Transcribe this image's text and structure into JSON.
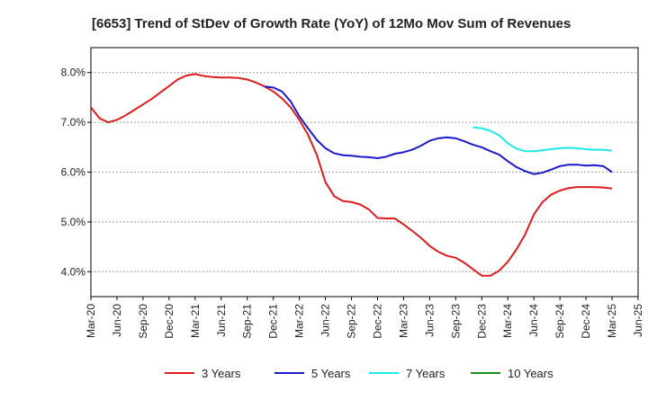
{
  "chart_data": {
    "type": "line",
    "title": "[6653]  Trend of StDev of Growth Rate (YoY) of 12Mo Mov Sum of Revenues",
    "xlabel": "",
    "ylabel": "",
    "ylim": [
      3.5,
      8.5
    ],
    "grid": true,
    "y_ticks": [
      {
        "value": 4.0,
        "label": "4.0%"
      },
      {
        "value": 5.0,
        "label": "5.0%"
      },
      {
        "value": 6.0,
        "label": "6.0%"
      },
      {
        "value": 7.0,
        "label": "7.0%"
      },
      {
        "value": 8.0,
        "label": "8.0%"
      }
    ],
    "x_range": [
      0,
      63
    ],
    "x_ticks": [
      {
        "index": 0,
        "label": "Mar-20"
      },
      {
        "index": 3,
        "label": "Jun-20"
      },
      {
        "index": 6,
        "label": "Sep-20"
      },
      {
        "index": 9,
        "label": "Dec-20"
      },
      {
        "index": 12,
        "label": "Mar-21"
      },
      {
        "index": 15,
        "label": "Jun-21"
      },
      {
        "index": 18,
        "label": "Sep-21"
      },
      {
        "index": 21,
        "label": "Dec-21"
      },
      {
        "index": 24,
        "label": "Mar-22"
      },
      {
        "index": 27,
        "label": "Jun-22"
      },
      {
        "index": 30,
        "label": "Sep-22"
      },
      {
        "index": 33,
        "label": "Dec-22"
      },
      {
        "index": 36,
        "label": "Mar-23"
      },
      {
        "index": 39,
        "label": "Jun-23"
      },
      {
        "index": 42,
        "label": "Sep-23"
      },
      {
        "index": 45,
        "label": "Dec-23"
      },
      {
        "index": 48,
        "label": "Mar-24"
      },
      {
        "index": 51,
        "label": "Jun-24"
      },
      {
        "index": 54,
        "label": "Sep-24"
      },
      {
        "index": 57,
        "label": "Dec-24"
      },
      {
        "index": 60,
        "label": "Mar-25"
      },
      {
        "index": 63,
        "label": "Jun-25"
      }
    ],
    "series": [
      {
        "name": "3 Years",
        "color": "#dd1c1c",
        "start_index": 0,
        "values": [
          7.3,
          7.08,
          7.0,
          7.05,
          7.14,
          7.25,
          7.36,
          7.47,
          7.6,
          7.73,
          7.86,
          7.94,
          7.97,
          7.93,
          7.91,
          7.9,
          7.9,
          7.89,
          7.86,
          7.8,
          7.72,
          7.62,
          7.48,
          7.3,
          7.05,
          6.75,
          6.35,
          5.8,
          5.52,
          5.42,
          5.4,
          5.35,
          5.25,
          5.08,
          5.07,
          5.07,
          4.95,
          4.82,
          4.68,
          4.52,
          4.4,
          4.32,
          4.28,
          4.18,
          4.05,
          3.92,
          3.92,
          4.02,
          4.2,
          4.45,
          4.75,
          5.15,
          5.4,
          5.55,
          5.63,
          5.68,
          5.7,
          5.7,
          5.7,
          5.69,
          5.67
        ]
      },
      {
        "name": "5 Years",
        "color": "#1a1acc",
        "start_index": 20,
        "values": [
          7.72,
          7.7,
          7.62,
          7.42,
          7.12,
          6.88,
          6.65,
          6.48,
          6.38,
          6.34,
          6.33,
          6.31,
          6.3,
          6.28,
          6.31,
          6.37,
          6.4,
          6.45,
          6.53,
          6.63,
          6.68,
          6.7,
          6.68,
          6.62,
          6.55,
          6.5,
          6.42,
          6.35,
          6.22,
          6.1,
          6.02,
          5.96,
          5.99,
          6.05,
          6.12,
          6.15,
          6.15,
          6.13,
          6.14,
          6.12,
          6.0
        ]
      },
      {
        "name": "7 Years",
        "color": "#1ee8ec",
        "start_index": 44,
        "values": [
          6.9,
          6.88,
          6.83,
          6.74,
          6.58,
          6.47,
          6.42,
          6.42,
          6.44,
          6.46,
          6.48,
          6.49,
          6.48,
          6.46,
          6.45,
          6.45,
          6.43
        ]
      },
      {
        "name": "10 Years",
        "color": "#1a8c1a",
        "start_index": 0,
        "values": []
      }
    ]
  }
}
